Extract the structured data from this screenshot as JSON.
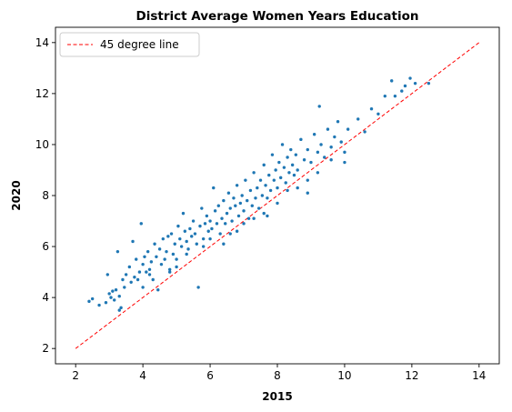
{
  "chart_data": {
    "type": "scatter",
    "title": "District Average Women Years Education",
    "xlabel": "2015",
    "ylabel": "2020",
    "xlim": [
      1.4,
      14.6
    ],
    "ylim": [
      1.4,
      14.6
    ],
    "xticks": [
      2,
      4,
      6,
      8,
      10,
      12,
      14
    ],
    "yticks": [
      2,
      4,
      6,
      8,
      10,
      12,
      14
    ],
    "grid": false,
    "legend_position": "top-left",
    "reference_line": {
      "name": "45 degree line",
      "x": [
        2,
        14
      ],
      "y": [
        2,
        14
      ],
      "color": "#ff0000",
      "style": "dashed"
    },
    "series": [
      {
        "color": "#1f77b4",
        "points": [
          [
            2.4,
            3.85
          ],
          [
            2.5,
            3.95
          ],
          [
            2.7,
            3.7
          ],
          [
            2.9,
            3.8
          ],
          [
            2.95,
            4.9
          ],
          [
            3.0,
            4.15
          ],
          [
            3.05,
            4.0
          ],
          [
            3.1,
            4.25
          ],
          [
            3.15,
            3.9
          ],
          [
            3.2,
            4.3
          ],
          [
            3.25,
            5.8
          ],
          [
            3.3,
            4.05
          ],
          [
            3.35,
            3.6
          ],
          [
            3.4,
            4.7
          ],
          [
            3.45,
            4.4
          ],
          [
            3.5,
            4.9
          ],
          [
            3.6,
            5.2
          ],
          [
            3.65,
            4.6
          ],
          [
            3.7,
            6.2
          ],
          [
            3.75,
            4.8
          ],
          [
            3.8,
            5.5
          ],
          [
            3.85,
            4.7
          ],
          [
            3.9,
            5.0
          ],
          [
            3.95,
            6.9
          ],
          [
            4.0,
            5.3
          ],
          [
            4.05,
            5.6
          ],
          [
            4.1,
            5.0
          ],
          [
            4.15,
            5.8
          ],
          [
            4.2,
            5.1
          ],
          [
            4.25,
            5.4
          ],
          [
            4.3,
            4.7
          ],
          [
            4.35,
            6.1
          ],
          [
            4.4,
            5.6
          ],
          [
            4.45,
            4.3
          ],
          [
            4.5,
            5.9
          ],
          [
            4.55,
            5.3
          ],
          [
            4.6,
            6.3
          ],
          [
            4.65,
            5.5
          ],
          [
            4.7,
            5.8
          ],
          [
            4.75,
            6.4
          ],
          [
            4.8,
            5.1
          ],
          [
            4.85,
            6.5
          ],
          [
            4.9,
            5.7
          ],
          [
            4.95,
            6.1
          ],
          [
            5.0,
            5.5
          ],
          [
            5.05,
            6.8
          ],
          [
            5.1,
            6.3
          ],
          [
            5.15,
            6.0
          ],
          [
            5.2,
            7.3
          ],
          [
            5.25,
            6.6
          ],
          [
            5.3,
            6.2
          ],
          [
            5.35,
            5.9
          ],
          [
            5.4,
            6.7
          ],
          [
            5.45,
            6.4
          ],
          [
            5.5,
            7.0
          ],
          [
            5.55,
            6.5
          ],
          [
            5.6,
            6.1
          ],
          [
            5.65,
            4.4
          ],
          [
            5.7,
            6.8
          ],
          [
            5.75,
            7.5
          ],
          [
            5.8,
            6.3
          ],
          [
            5.85,
            6.9
          ],
          [
            5.9,
            7.2
          ],
          [
            5.95,
            6.6
          ],
          [
            6.0,
            7.0
          ],
          [
            6.05,
            6.7
          ],
          [
            6.1,
            8.3
          ],
          [
            6.15,
            7.4
          ],
          [
            6.2,
            6.9
          ],
          [
            6.25,
            7.6
          ],
          [
            6.3,
            6.5
          ],
          [
            6.35,
            7.1
          ],
          [
            6.4,
            7.8
          ],
          [
            6.45,
            6.9
          ],
          [
            6.5,
            7.3
          ],
          [
            6.55,
            8.1
          ],
          [
            6.6,
            7.5
          ],
          [
            6.65,
            7.0
          ],
          [
            6.7,
            7.9
          ],
          [
            6.75,
            7.6
          ],
          [
            6.8,
            8.4
          ],
          [
            6.85,
            7.2
          ],
          [
            6.9,
            7.7
          ],
          [
            6.95,
            8.0
          ],
          [
            7.0,
            7.4
          ],
          [
            7.05,
            8.6
          ],
          [
            7.1,
            7.8
          ],
          [
            7.15,
            7.1
          ],
          [
            7.2,
            8.2
          ],
          [
            7.25,
            7.6
          ],
          [
            7.3,
            8.9
          ],
          [
            7.35,
            7.9
          ],
          [
            7.4,
            8.3
          ],
          [
            7.45,
            7.5
          ],
          [
            7.5,
            8.6
          ],
          [
            7.55,
            8.0
          ],
          [
            7.6,
            9.2
          ],
          [
            7.65,
            8.4
          ],
          [
            7.7,
            7.9
          ],
          [
            7.75,
            8.8
          ],
          [
            7.8,
            8.2
          ],
          [
            7.85,
            9.6
          ],
          [
            7.9,
            8.6
          ],
          [
            7.95,
            9.0
          ],
          [
            8.0,
            8.3
          ],
          [
            8.05,
            9.3
          ],
          [
            8.1,
            8.7
          ],
          [
            8.15,
            10.0
          ],
          [
            8.2,
            9.1
          ],
          [
            8.25,
            8.5
          ],
          [
            8.3,
            9.5
          ],
          [
            8.35,
            8.9
          ],
          [
            8.4,
            9.8
          ],
          [
            8.45,
            9.2
          ],
          [
            8.5,
            8.8
          ],
          [
            8.55,
            9.6
          ],
          [
            8.6,
            9.0
          ],
          [
            8.7,
            10.2
          ],
          [
            8.8,
            9.4
          ],
          [
            8.9,
            9.8
          ],
          [
            9.0,
            9.3
          ],
          [
            9.1,
            10.4
          ],
          [
            9.2,
            9.7
          ],
          [
            9.25,
            11.5
          ],
          [
            9.3,
            10.0
          ],
          [
            9.4,
            9.5
          ],
          [
            9.5,
            10.6
          ],
          [
            9.6,
            9.9
          ],
          [
            9.7,
            10.3
          ],
          [
            9.8,
            10.9
          ],
          [
            9.9,
            10.1
          ],
          [
            10.0,
            9.3
          ],
          [
            10.1,
            10.6
          ],
          [
            10.4,
            11.0
          ],
          [
            10.6,
            10.5
          ],
          [
            10.8,
            11.4
          ],
          [
            11.0,
            11.2
          ],
          [
            11.2,
            11.9
          ],
          [
            11.4,
            12.5
          ],
          [
            11.5,
            11.9
          ],
          [
            11.7,
            12.1
          ],
          [
            11.8,
            12.3
          ],
          [
            11.95,
            12.6
          ],
          [
            12.1,
            12.4
          ],
          [
            12.5,
            12.4
          ],
          [
            3.3,
            3.5
          ],
          [
            4.0,
            4.4
          ],
          [
            4.2,
            4.9
          ],
          [
            5.0,
            5.2
          ],
          [
            5.3,
            5.7
          ],
          [
            6.0,
            6.3
          ],
          [
            6.4,
            6.1
          ],
          [
            6.8,
            6.6
          ],
          [
            7.0,
            6.9
          ],
          [
            7.3,
            7.1
          ],
          [
            7.6,
            7.3
          ],
          [
            8.0,
            7.7
          ],
          [
            8.3,
            8.2
          ],
          [
            8.6,
            8.3
          ],
          [
            8.9,
            8.6
          ],
          [
            9.2,
            8.9
          ],
          [
            9.6,
            9.4
          ],
          [
            10.0,
            9.7
          ],
          [
            8.9,
            8.1
          ],
          [
            7.7,
            7.2
          ],
          [
            6.6,
            6.5
          ],
          [
            5.8,
            6.0
          ],
          [
            4.8,
            5.0
          ]
        ]
      }
    ]
  }
}
